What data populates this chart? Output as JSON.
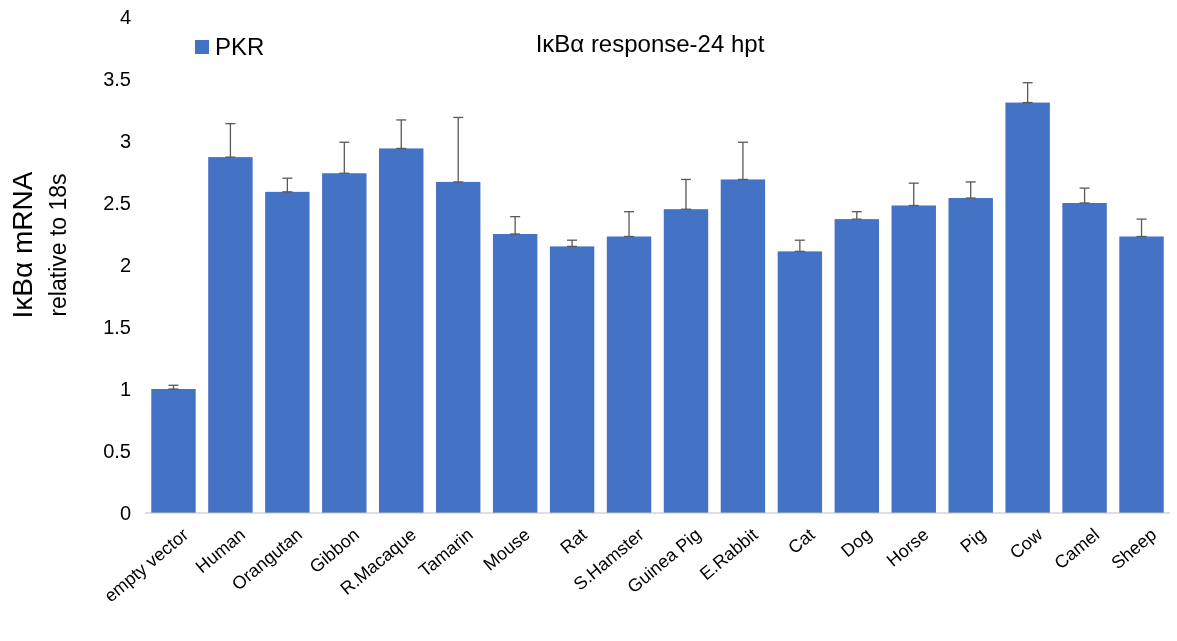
{
  "chart_data": {
    "type": "bar",
    "title": "IκBα response-24 hpt",
    "ylabel": "IκBα mRNA\nrelative to 18s",
    "categories": [
      "empty vector",
      "Human",
      "Orangutan",
      "Gibbon",
      "R.Macaque",
      "Tamarin",
      "Mouse",
      "Rat",
      "S.Hamster",
      "Guinea Pig",
      "E.Rabbit",
      "Cat",
      "Dog",
      "Horse",
      "Pig",
      "Cow",
      "Camel",
      "Sheep"
    ],
    "series": [
      {
        "name": "PKR",
        "color": "#4472c4",
        "values": [
          1.0,
          2.87,
          2.59,
          2.74,
          2.94,
          2.67,
          2.25,
          2.15,
          2.23,
          2.45,
          2.69,
          2.11,
          2.37,
          2.48,
          2.54,
          3.31,
          2.5,
          2.23
        ],
        "errors": [
          [
            1.0,
            1.03
          ],
          [
            2.87,
            3.14
          ],
          [
            2.59,
            2.7
          ],
          [
            2.74,
            2.99
          ],
          [
            2.94,
            3.17
          ],
          [
            2.67,
            3.19
          ],
          [
            2.25,
            2.39
          ],
          [
            2.15,
            2.2
          ],
          [
            2.23,
            2.43
          ],
          [
            2.45,
            2.69
          ],
          [
            2.69,
            2.99
          ],
          [
            2.11,
            2.2
          ],
          [
            2.37,
            2.43
          ],
          [
            2.48,
            2.66
          ],
          [
            2.54,
            2.67
          ],
          [
            3.31,
            3.47
          ],
          [
            2.5,
            2.62
          ],
          [
            2.23,
            2.37
          ]
        ]
      }
    ],
    "ylim": [
      0,
      4
    ],
    "yticks": [
      0,
      0.5,
      1,
      1.5,
      2,
      2.5,
      3,
      3.5,
      4
    ],
    "grid": false,
    "legend": "top left"
  }
}
